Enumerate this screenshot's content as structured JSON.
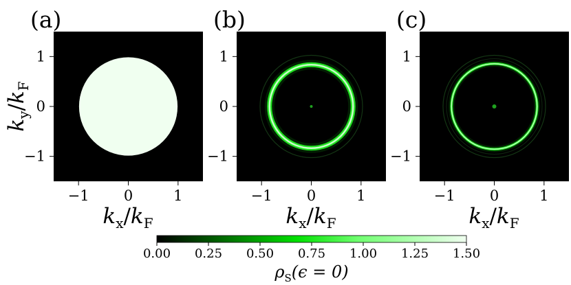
{
  "chart_data": [
    {
      "type": "heatmap",
      "panel_label": "(a)",
      "description_pattern": "filled-disk",
      "disk_radius": 0.99,
      "value_inside": 1.45,
      "value_outside": 0.0,
      "xlim": [
        -1.5,
        1.5
      ],
      "ylim": [
        -1.5,
        1.5
      ],
      "xticks": [
        "−1",
        "0",
        "1"
      ],
      "yticks": [
        "1",
        "0",
        "−1"
      ],
      "xlabel": {
        "main": "k",
        "sub1": "x",
        "slash": "/k",
        "sub2": "F"
      },
      "ylabel": {
        "main": "k",
        "sub1": "y",
        "slash": "/k",
        "sub2": "F"
      }
    },
    {
      "type": "heatmap",
      "panel_label": "(b)",
      "description_pattern": "bright-ring",
      "ring_radius": 0.84,
      "ring_peak_value": 1.2,
      "center_dot_value": 0.6,
      "outer_faint_ring_radius": 1.03,
      "xlim": [
        -1.5,
        1.5
      ],
      "ylim": [
        -1.5,
        1.5
      ],
      "xticks": [
        "−1",
        "0",
        "1"
      ],
      "yticks": [
        "1",
        "0",
        "−1"
      ],
      "xlabel": {
        "main": "k",
        "sub1": "x",
        "slash": "/k",
        "sub2": "F"
      }
    },
    {
      "type": "heatmap",
      "panel_label": "(c)",
      "description_pattern": "thin-ring",
      "ring_radius": 0.86,
      "ring_peak_value": 1.2,
      "center_dot_value": 0.6,
      "outer_faint_ring_radius": 1.03,
      "xlim": [
        -1.5,
        1.5
      ],
      "ylim": [
        -1.5,
        1.5
      ],
      "xticks": [
        "−1",
        "0",
        "1"
      ],
      "yticks": [
        "1",
        "0",
        "−1"
      ],
      "xlabel": {
        "main": "k",
        "sub1": "x",
        "slash": "/k",
        "sub2": "F"
      }
    }
  ],
  "colorbar": {
    "range": [
      0.0,
      1.5
    ],
    "ticks": [
      "0.00",
      "0.25",
      "0.50",
      "0.75",
      "1.00",
      "1.25",
      "1.50"
    ],
    "tick_values": [
      0.0,
      0.25,
      0.5,
      0.75,
      1.0,
      1.25,
      1.5
    ],
    "label": {
      "main": "ρ",
      "sub": "S",
      "rest": "(ϵ = 0)"
    },
    "colors": [
      "#000000",
      "#00ff00",
      "#f0fff0"
    ]
  }
}
